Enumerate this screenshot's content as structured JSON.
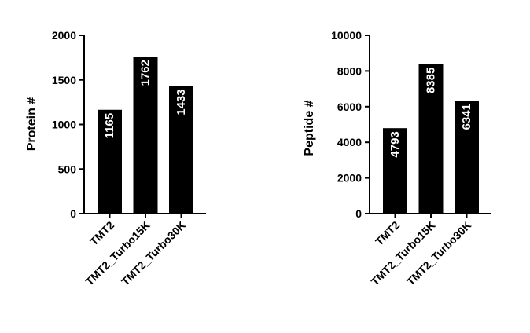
{
  "chart_data": [
    {
      "type": "bar",
      "categories": [
        "TMT2",
        "TMT2_Turbo15K",
        "TMT2_Turbo30K"
      ],
      "values": [
        1165,
        1762,
        1433
      ],
      "data_labels": [
        "1165",
        "1762",
        "1433"
      ],
      "title": "",
      "xlabel": "",
      "ylabel": "Protein #",
      "ylim": [
        0,
        2000
      ],
      "yticks": [
        "0",
        "500",
        "1000",
        "1500",
        "2000"
      ],
      "bar_color": "#000000",
      "label_color": "#ffffff",
      "grid": false,
      "legend": "none"
    },
    {
      "type": "bar",
      "categories": [
        "TMT2",
        "TMT2_Turbo15K",
        "TMT2_Turbo30K"
      ],
      "values": [
        4793,
        8385,
        6341
      ],
      "data_labels": [
        "4793",
        "8385",
        "6341"
      ],
      "title": "",
      "xlabel": "",
      "ylabel": "Peptide #",
      "ylim": [
        0,
        10000
      ],
      "yticks": [
        "0",
        "2000",
        "4000",
        "6000",
        "8000",
        "10000"
      ],
      "bar_color": "#000000",
      "label_color": "#ffffff",
      "grid": false,
      "legend": "none"
    }
  ]
}
